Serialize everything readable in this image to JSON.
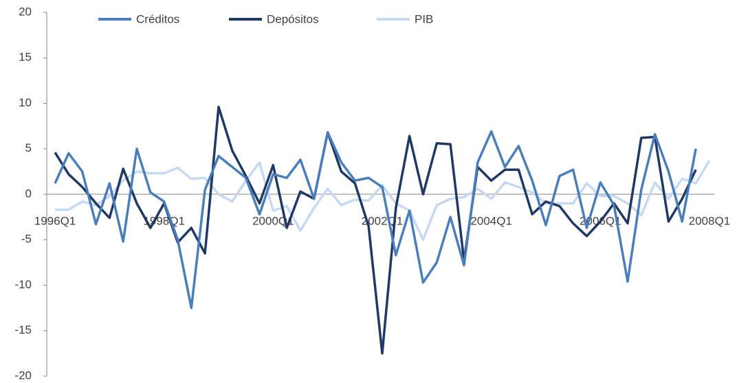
{
  "chart_data": {
    "type": "line",
    "categories": [
      "1996Q1",
      null,
      null,
      null,
      null,
      null,
      null,
      null,
      "1998Q1",
      null,
      null,
      null,
      null,
      null,
      null,
      null,
      "2000Q1",
      null,
      null,
      null,
      null,
      null,
      null,
      null,
      "2002Q1",
      null,
      null,
      null,
      null,
      null,
      null,
      null,
      "2004Q1",
      null,
      null,
      null,
      null,
      null,
      null,
      null,
      "2006Q1",
      null,
      null,
      null,
      null,
      null,
      null,
      null,
      "2008Q1"
    ],
    "series": [
      {
        "name": "Créditos",
        "color": "#4a7ebb",
        "values": [
          1.2,
          4.5,
          2.5,
          -3.3,
          1.2,
          -5.2,
          5.0,
          0.2,
          -0.8,
          -5.0,
          -12.5,
          0.5,
          4.2,
          3.0,
          1.8,
          -2.2,
          2.2,
          1.8,
          3.8,
          -0.5,
          6.8,
          3.5,
          1.5,
          1.8,
          0.8,
          -6.7,
          -1.8,
          -9.7,
          -7.5,
          -2.5,
          -7.8,
          3.5,
          6.9,
          3.0,
          5.3,
          1.5,
          -3.4,
          2.0,
          2.7,
          -3.7,
          1.3,
          -1.2,
          -9.6,
          0.5,
          6.6,
          2.5,
          -3.0,
          5.0,
          null
        ]
      },
      {
        "name": "Depósitos",
        "color": "#1f3864",
        "values": [
          4.6,
          2.2,
          0.8,
          -1.0,
          -2.6,
          2.8,
          -1.0,
          -3.7,
          -1.0,
          -5.3,
          -3.7,
          -6.5,
          9.6,
          4.8,
          2.0,
          -1.0,
          3.2,
          -3.7,
          0.3,
          -0.5,
          6.8,
          2.5,
          1.2,
          -3.5,
          -17.5,
          -1.5,
          6.4,
          0.0,
          5.6,
          5.5,
          -7.3,
          3.0,
          1.5,
          2.7,
          2.7,
          -2.2,
          -0.8,
          -1.3,
          -3.2,
          -4.6,
          -3.0,
          -1.0,
          -3.2,
          6.2,
          6.3,
          -3.0,
          -0.5,
          2.7,
          null
        ]
      },
      {
        "name": "PIB",
        "color": "#c6d9f1",
        "values": [
          -1.7,
          -1.7,
          -0.8,
          -1.2,
          -0.2,
          1.5,
          2.5,
          2.3,
          2.3,
          2.9,
          1.7,
          1.8,
          0.0,
          -0.8,
          1.5,
          3.5,
          -1.8,
          -1.3,
          -4.0,
          -1.5,
          0.6,
          -1.2,
          -0.6,
          -0.7,
          1.0,
          -1.0,
          -1.8,
          -5.0,
          -1.2,
          -0.5,
          -0.3,
          0.6,
          -0.5,
          1.3,
          0.8,
          0.2,
          -1.0,
          -1.0,
          -1.0,
          1.2,
          -0.2,
          -0.2,
          -1.0,
          -2.3,
          1.3,
          -0.5,
          1.7,
          1.2,
          3.7
        ]
      }
    ],
    "ylim": [
      -20,
      20
    ],
    "yticks": [
      -20,
      -15,
      -10,
      -5,
      0,
      5,
      10,
      15,
      20
    ],
    "grid": false,
    "legend": "top"
  }
}
